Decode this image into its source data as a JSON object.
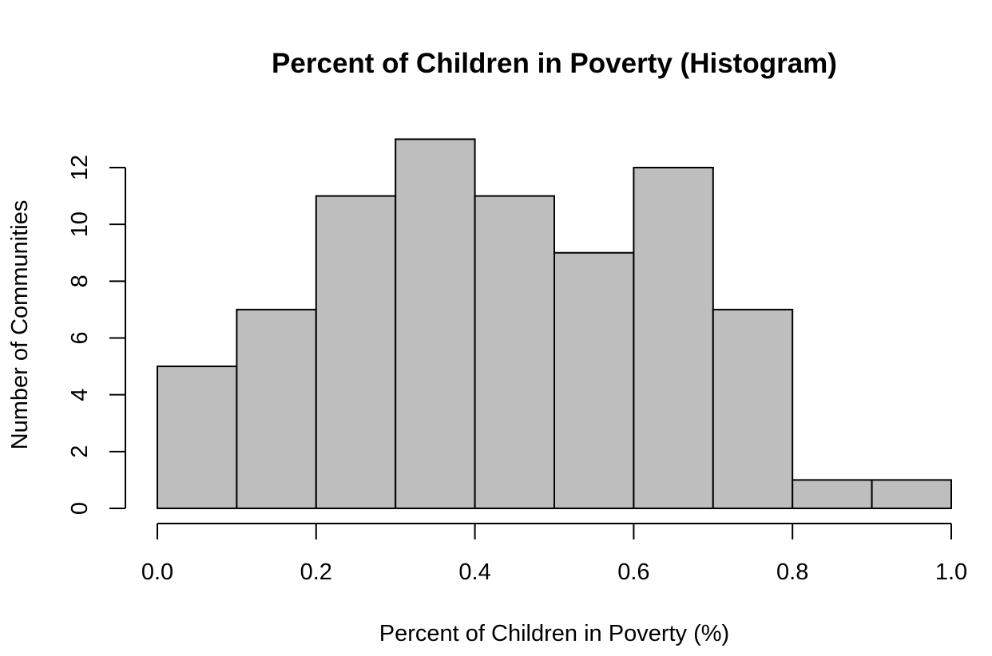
{
  "chart_data": {
    "type": "bar",
    "subtype": "histogram",
    "title": "Percent of Children in Poverty (Histogram)",
    "xlabel": "Percent of Children in Poverty (%)",
    "ylabel": "Number of Communities",
    "bins": [
      {
        "start": 0.0,
        "end": 0.1,
        "count": 5
      },
      {
        "start": 0.1,
        "end": 0.2,
        "count": 7
      },
      {
        "start": 0.2,
        "end": 0.3,
        "count": 11
      },
      {
        "start": 0.3,
        "end": 0.4,
        "count": 13
      },
      {
        "start": 0.4,
        "end": 0.5,
        "count": 11
      },
      {
        "start": 0.5,
        "end": 0.6,
        "count": 9
      },
      {
        "start": 0.6,
        "end": 0.7,
        "count": 12
      },
      {
        "start": 0.7,
        "end": 0.8,
        "count": 7
      },
      {
        "start": 0.8,
        "end": 0.9,
        "count": 1
      },
      {
        "start": 0.9,
        "end": 1.0,
        "count": 1
      }
    ],
    "xlim": [
      0.0,
      1.0
    ],
    "ylim": [
      0,
      12
    ],
    "xticks": [
      "0.0",
      "0.2",
      "0.4",
      "0.6",
      "0.8",
      "1.0"
    ],
    "yticks": [
      "0",
      "2",
      "4",
      "6",
      "8",
      "10",
      "12"
    ],
    "bar_color": "#bebebe",
    "grid": false,
    "legend": "none"
  }
}
